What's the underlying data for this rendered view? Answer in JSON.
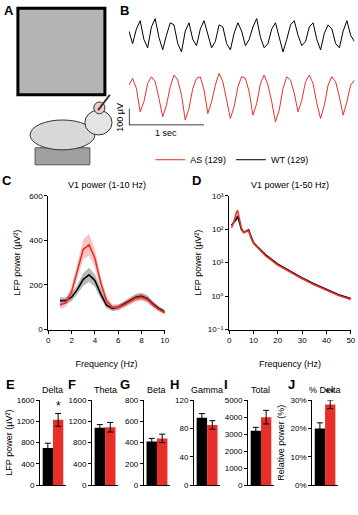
{
  "illustration": {
    "panel": "A"
  },
  "chart_data": [
    {
      "panel": "B",
      "type": "line",
      "x": [
        0,
        0.05,
        0.1,
        0.15,
        0.2,
        0.25,
        0.3,
        0.35,
        0.4,
        0.45,
        0.5,
        0.55,
        0.6,
        0.65,
        0.7,
        0.75,
        0.8,
        0.85,
        0.9,
        0.95,
        1,
        1.05,
        1.1,
        1.15,
        1.2,
        1.25,
        1.3,
        1.35,
        1.4,
        1.45,
        1.5,
        1.55,
        1.6,
        1.65,
        1.7,
        1.75,
        1.8,
        1.85,
        1.9,
        1.95,
        2,
        2.05,
        2.1,
        2.15,
        2.2,
        2.25,
        2.3,
        2.35,
        2.4,
        2.45,
        2.5,
        2.55,
        2.6,
        2.65,
        2.7,
        2.75,
        2.8,
        2.85,
        2.9,
        2.95,
        3
      ],
      "xlim": [
        0,
        3
      ],
      "ylim": [
        -60,
        60
      ],
      "y2lim": [
        -200,
        130
      ],
      "tick_labels": false,
      "legend": "bottom",
      "series": [
        {
          "name": "WT (129)",
          "color": "#000000",
          "values": [
            10,
            -20,
            15,
            35,
            -10,
            -30,
            20,
            40,
            -5,
            -35,
            0,
            30,
            25,
            -20,
            -40,
            10,
            30,
            -10,
            -25,
            15,
            35,
            5,
            -30,
            -15,
            25,
            20,
            -20,
            -35,
            5,
            30,
            10,
            -25,
            -10,
            20,
            40,
            -5,
            -30,
            -20,
            15,
            30,
            -5,
            -40,
            -10,
            25,
            35,
            0,
            -25,
            -15,
            20,
            30,
            -10,
            -35,
            5,
            25,
            15,
            -20,
            -30,
            10,
            35,
            0,
            -15
          ]
        },
        {
          "name": "AS (129)",
          "color": "#e8302a",
          "axis": "y2",
          "values": [
            40,
            80,
            20,
            -120,
            -60,
            50,
            90,
            60,
            -40,
            -150,
            -80,
            30,
            100,
            70,
            -20,
            -170,
            -100,
            20,
            80,
            90,
            10,
            -130,
            -60,
            40,
            110,
            60,
            -50,
            -160,
            -90,
            30,
            90,
            80,
            0,
            -140,
            -70,
            50,
            100,
            40,
            -60,
            -180,
            -110,
            20,
            90,
            70,
            -10,
            -120,
            -50,
            60,
            100,
            50,
            -70,
            -160,
            -80,
            40,
            90,
            60,
            -30,
            -140,
            -60,
            40,
            70
          ]
        }
      ],
      "scale_bar": {
        "x": 1,
        "y": 100,
        "x_label": "1 sec",
        "y_label": "100 µV"
      }
    },
    {
      "panel": "C",
      "type": "line",
      "title": "V1 power (1-10 Hz)",
      "x_label": "Frequency (Hz)",
      "y_label": "LFP power (µV²)",
      "x": [
        1,
        1.5,
        2,
        2.5,
        3,
        3.5,
        4,
        4.5,
        5,
        5.5,
        6,
        6.5,
        7,
        7.5,
        8,
        8.5,
        9,
        9.5,
        10
      ],
      "xlim": [
        0,
        10
      ],
      "xticks": [
        0,
        2,
        4,
        6,
        8,
        10
      ],
      "ylim": [
        0,
        600
      ],
      "yticks": [
        0,
        200,
        400,
        600
      ],
      "series": [
        {
          "name": "WT (129)",
          "color": "#000000",
          "values": [
            130,
            130,
            145,
            180,
            225,
            245,
            220,
            160,
            110,
            95,
            100,
            115,
            130,
            145,
            150,
            140,
            115,
            95,
            80
          ],
          "error": [
            15,
            15,
            18,
            22,
            28,
            32,
            28,
            22,
            15,
            12,
            12,
            12,
            14,
            15,
            15,
            14,
            12,
            10,
            10
          ]
        },
        {
          "name": "AS (129)",
          "color": "#e8302a",
          "values": [
            110,
            120,
            170,
            260,
            360,
            380,
            320,
            210,
            130,
            100,
            100,
            110,
            125,
            140,
            145,
            135,
            110,
            90,
            75
          ],
          "error": [
            18,
            18,
            25,
            35,
            45,
            48,
            42,
            30,
            18,
            14,
            13,
            13,
            14,
            15,
            16,
            15,
            13,
            11,
            10
          ]
        }
      ]
    },
    {
      "panel": "D",
      "type": "line",
      "title": "V1 power (1-50 Hz)",
      "x_label": "Frequency (Hz)",
      "y_label": "LFP power (µV²)",
      "log": "y",
      "x": [
        1,
        2,
        3,
        3.5,
        4,
        5,
        6,
        7,
        8,
        9,
        10,
        12,
        15,
        20,
        25,
        30,
        35,
        40,
        45,
        50
      ],
      "xlim": [
        0,
        50
      ],
      "xticks": [
        0,
        10,
        20,
        30,
        40,
        50
      ],
      "ylim": [
        0.1,
        1000
      ],
      "yticks": [
        {
          "value": 0.1,
          "label": "10⁻¹"
        },
        {
          "value": 1,
          "label": "10⁰"
        },
        {
          "value": 10,
          "label": "10¹"
        },
        {
          "value": 100,
          "label": "10²"
        },
        {
          "value": 1000,
          "label": "10³"
        }
      ],
      "series": [
        {
          "name": "WT (129)",
          "color": "#000000",
          "values": [
            130,
            160,
            200,
            250,
            180,
            100,
            80,
            85,
            95,
            60,
            40,
            28,
            17,
            9,
            5.5,
            3.5,
            2.3,
            1.6,
            1.1,
            0.85
          ]
        },
        {
          "name": "AS (129)",
          "color": "#e8302a",
          "values": [
            110,
            170,
            320,
            360,
            240,
            110,
            80,
            85,
            90,
            55,
            38,
            27,
            16,
            8.5,
            5.2,
            3.3,
            2.2,
            1.5,
            1.05,
            0.8
          ]
        }
      ]
    },
    {
      "panel": "E",
      "type": "bar",
      "title": "Delta",
      "y_label": "LFP power (µV²)",
      "categories": [
        null
      ],
      "ylim": [
        0,
        1600
      ],
      "yticks": [
        0,
        400,
        800,
        1200,
        1600
      ],
      "tick_labels": "y",
      "series": [
        {
          "name": "WT (129)",
          "color": "#000000",
          "values": [
            700
          ],
          "error": [
            90
          ]
        },
        {
          "name": "AS (129)",
          "color": "#e8302a",
          "values": [
            1230
          ],
          "error": [
            120
          ]
        }
      ],
      "annotations": [
        {
          "text": "*"
        }
      ]
    },
    {
      "panel": "F",
      "type": "bar",
      "title": "Theta",
      "categories": [
        null
      ],
      "ylim": [
        0,
        1600
      ],
      "yticks": [
        0,
        400,
        800,
        1200,
        1600
      ],
      "tick_labels": "y",
      "series": [
        {
          "name": "WT (129)",
          "color": "#000000",
          "values": [
            1080
          ],
          "error": [
            60
          ]
        },
        {
          "name": "AS (129)",
          "color": "#e8302a",
          "values": [
            1090
          ],
          "error": [
            90
          ]
        }
      ]
    },
    {
      "panel": "G",
      "type": "bar",
      "title": "Beta",
      "categories": [
        null
      ],
      "ylim": [
        0,
        800
      ],
      "yticks": [
        0,
        200,
        400,
        600,
        800
      ],
      "tick_labels": "y",
      "series": [
        {
          "name": "WT (129)",
          "color": "#000000",
          "values": [
            410
          ],
          "error": [
            30
          ]
        },
        {
          "name": "AS (129)",
          "color": "#e8302a",
          "values": [
            440
          ],
          "error": [
            40
          ]
        }
      ]
    },
    {
      "panel": "H",
      "type": "bar",
      "title": "Gamma",
      "categories": [
        null
      ],
      "ylim": [
        0,
        120
      ],
      "yticks": [
        0,
        40,
        80,
        120
      ],
      "tick_labels": "y",
      "series": [
        {
          "name": "WT (129)",
          "color": "#000000",
          "values": [
            95
          ],
          "error": [
            6
          ]
        },
        {
          "name": "AS (129)",
          "color": "#e8302a",
          "values": [
            85
          ],
          "error": [
            6
          ]
        }
      ]
    },
    {
      "panel": "I",
      "type": "bar",
      "title": "Total",
      "categories": [
        null
      ],
      "ylim": [
        0,
        5000
      ],
      "yticks": [
        0,
        1000,
        2000,
        3000,
        4000,
        5000
      ],
      "tick_labels": "y",
      "series": [
        {
          "name": "WT (129)",
          "color": "#000000",
          "values": [
            3200
          ],
          "error": [
            200
          ]
        },
        {
          "name": "AS (129)",
          "color": "#e8302a",
          "values": [
            4000
          ],
          "error": [
            400
          ]
        }
      ]
    },
    {
      "panel": "J",
      "type": "bar",
      "title": "% Delta",
      "y_label": "Relative power (%)",
      "categories": [
        null
      ],
      "ylim": [
        0,
        30
      ],
      "yticks": [
        {
          "value": 0,
          "label": "0%"
        },
        {
          "value": 10,
          "label": "10%"
        },
        {
          "value": 20,
          "label": "20%"
        },
        {
          "value": 30,
          "label": "30%"
        }
      ],
      "tick_labels": "y",
      "series": [
        {
          "name": "WT (129)",
          "color": "#000000",
          "values": [
            20
          ],
          "error": [
            2
          ]
        },
        {
          "name": "AS (129)",
          "color": "#e8302a",
          "values": [
            28.5
          ],
          "error": [
            1.5
          ]
        }
      ],
      "annotations": [
        {
          "text": "**"
        }
      ]
    }
  ]
}
